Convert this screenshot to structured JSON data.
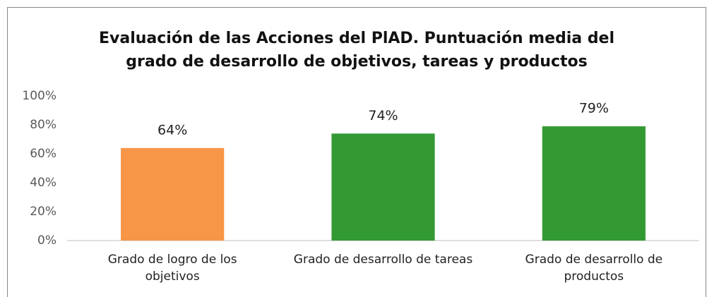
{
  "chart_data": {
    "type": "bar",
    "title": "Evaluación de las Acciones del PlAD. Puntuación media del grado de desarrollo de objetivos, tareas y productos",
    "categories": [
      "Grado de logro de los objetivos",
      "Grado de desarrollo de tareas",
      "Grado de desarrollo de productos"
    ],
    "values": [
      64,
      74,
      79
    ],
    "value_labels": [
      "64%",
      "74%",
      "79%"
    ],
    "colors": [
      "#f79646",
      "#339933",
      "#339933"
    ],
    "ylim": [
      0,
      100
    ],
    "yticks": [
      {
        "value": 0,
        "label": "0%"
      },
      {
        "value": 20,
        "label": "20%"
      },
      {
        "value": 40,
        "label": "40%"
      },
      {
        "value": 60,
        "label": "60%"
      },
      {
        "value": 80,
        "label": "80%"
      },
      {
        "value": 100,
        "label": "100%"
      }
    ],
    "grid": false
  }
}
